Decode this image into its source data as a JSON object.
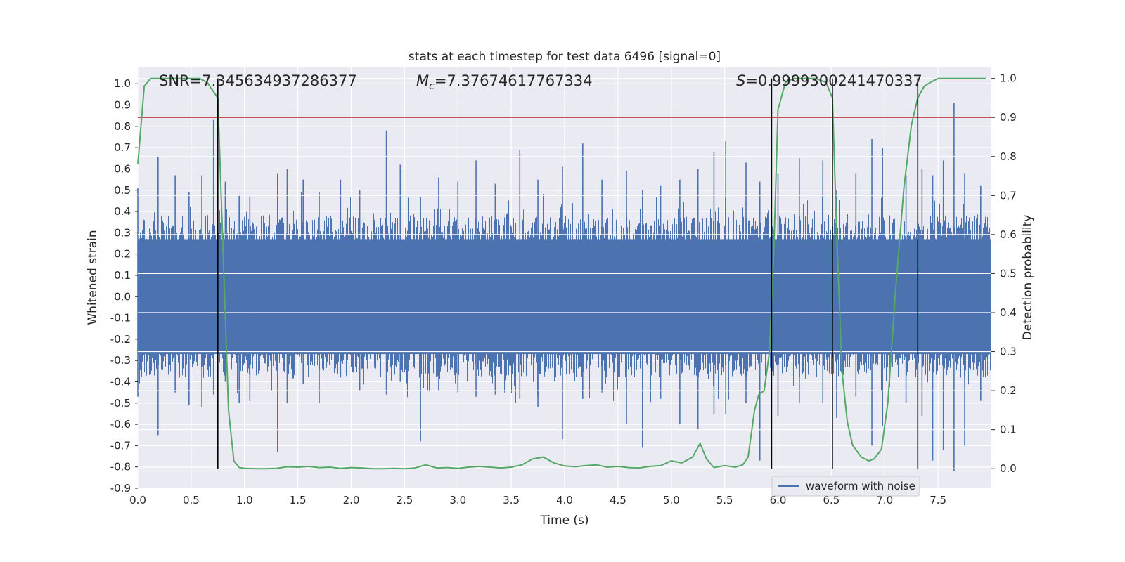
{
  "chart_data": {
    "type": "line",
    "title": "stats at each timestep for test data 6496 [signal=0]",
    "xlabel": "Time (s)",
    "ylabel_left": "Whitened strain",
    "ylabel_right": "Detection probability",
    "xlim": [
      0.0,
      8.0
    ],
    "ylim_left": [
      -0.9,
      1.08
    ],
    "ylim_right": [
      -0.05,
      1.03
    ],
    "x_ticks": [
      "0.0",
      "0.5",
      "1.0",
      "1.5",
      "2.0",
      "2.5",
      "3.0",
      "3.5",
      "4.0",
      "4.5",
      "5.0",
      "5.5",
      "6.0",
      "6.5",
      "7.0",
      "7.5"
    ],
    "y_left_ticks": [
      "1.0",
      "0.9",
      "0.8",
      "0.7",
      "0.6",
      "0.5",
      "0.4",
      "0.3",
      "0.2",
      "0.1",
      "0.0",
      "-0.1",
      "-0.2",
      "-0.3",
      "-0.4",
      "-0.5",
      "-0.6",
      "-0.7",
      "-0.8",
      "-0.9"
    ],
    "y_right_ticks": [
      "1.0",
      "0.9",
      "0.8",
      "0.7",
      "0.6",
      "0.5",
      "0.4",
      "0.3",
      "0.2",
      "0.1",
      "0.0"
    ],
    "grid": true,
    "annotations": {
      "snr": "SNR=7.345634937286377",
      "mc_symbol": "M",
      "mc_sub": "c",
      "mc_value": "=7.37674617767334",
      "s_symbol": "S",
      "s_value": "=0.9999300241470337"
    },
    "threshold": {
      "value": 0.9,
      "axis": "right",
      "color": "#c44e52"
    },
    "vertical_lines": [
      0.75,
      5.94,
      6.51,
      7.31
    ],
    "waveform": {
      "name": "waveform with noise",
      "color": "#4c72b0",
      "envelope": 0.27,
      "spikes": [
        [
          0.0,
          0.51,
          -0.47
        ],
        [
          0.19,
          0.66,
          -0.65
        ],
        [
          0.35,
          0.57,
          -0.45
        ],
        [
          0.48,
          0.49,
          -0.51
        ],
        [
          0.6,
          0.57,
          -0.52
        ],
        [
          0.71,
          0.83,
          -0.46
        ],
        [
          0.82,
          0.54,
          -0.4
        ],
        [
          0.95,
          0.48,
          -0.5
        ],
        [
          1.05,
          0.47,
          -0.49
        ],
        [
          1.31,
          0.58,
          -0.73
        ],
        [
          1.4,
          0.6,
          -0.5
        ],
        [
          1.55,
          0.55,
          -0.41
        ],
        [
          1.7,
          0.49,
          -0.5
        ],
        [
          1.9,
          0.55,
          -0.38
        ],
        [
          2.08,
          0.5,
          -0.44
        ],
        [
          2.33,
          0.78,
          -0.46
        ],
        [
          2.46,
          0.62,
          -0.4
        ],
        [
          2.65,
          0.47,
          -0.68
        ],
        [
          2.82,
          0.56,
          -0.44
        ],
        [
          3.0,
          0.54,
          -0.45
        ],
        [
          3.17,
          0.64,
          -0.47
        ],
        [
          3.35,
          0.53,
          -0.46
        ],
        [
          3.58,
          0.69,
          -0.48
        ],
        [
          3.75,
          0.55,
          -0.52
        ],
        [
          3.98,
          0.61,
          -0.67
        ],
        [
          4.17,
          0.72,
          -0.48
        ],
        [
          4.35,
          0.55,
          -0.45
        ],
        [
          4.58,
          0.59,
          -0.6
        ],
        [
          4.73,
          0.5,
          -0.71
        ],
        [
          4.9,
          0.52,
          -0.48
        ],
        [
          5.08,
          0.55,
          -0.6
        ],
        [
          5.25,
          0.6,
          -0.62
        ],
        [
          5.4,
          0.68,
          -0.55
        ],
        [
          5.51,
          0.73,
          -0.55
        ],
        [
          5.7,
          0.63,
          -0.5
        ],
        [
          5.83,
          0.54,
          -0.77
        ],
        [
          6.0,
          0.58,
          -0.56
        ],
        [
          6.2,
          0.65,
          -0.5
        ],
        [
          6.42,
          0.64,
          -0.5
        ],
        [
          6.55,
          0.5,
          -0.57
        ],
        [
          6.73,
          0.58,
          -0.47
        ],
        [
          6.88,
          0.74,
          -0.7
        ],
        [
          6.98,
          0.7,
          -0.61
        ],
        [
          7.2,
          0.57,
          -0.5
        ],
        [
          7.35,
          0.6,
          -0.56
        ],
        [
          7.45,
          0.57,
          -0.77
        ],
        [
          7.55,
          0.64,
          -0.72
        ],
        [
          7.65,
          0.91,
          -0.82
        ],
        [
          7.75,
          0.58,
          -0.7
        ],
        [
          7.9,
          0.52,
          -0.49
        ]
      ]
    },
    "probability": {
      "color": "#55a868",
      "x": [
        0.0,
        0.06,
        0.12,
        0.2,
        0.3,
        0.4,
        0.5,
        0.58,
        0.65,
        0.7,
        0.75,
        0.8,
        0.85,
        0.9,
        0.95,
        1.0,
        1.1,
        1.2,
        1.3,
        1.4,
        1.5,
        1.6,
        1.7,
        1.8,
        1.9,
        2.0,
        2.1,
        2.2,
        2.3,
        2.4,
        2.5,
        2.6,
        2.7,
        2.8,
        2.9,
        3.0,
        3.1,
        3.2,
        3.3,
        3.4,
        3.5,
        3.6,
        3.7,
        3.8,
        3.9,
        4.0,
        4.1,
        4.2,
        4.3,
        4.4,
        4.5,
        4.6,
        4.7,
        4.8,
        4.9,
        5.0,
        5.1,
        5.2,
        5.27,
        5.33,
        5.4,
        5.5,
        5.6,
        5.67,
        5.72,
        5.78,
        5.82,
        5.87,
        5.92,
        5.96,
        6.0,
        6.07,
        6.15,
        6.25,
        6.35,
        6.45,
        6.51,
        6.55,
        6.6,
        6.65,
        6.7,
        6.78,
        6.85,
        6.9,
        6.97,
        7.03,
        7.1,
        7.18,
        7.25,
        7.31,
        7.37,
        7.43,
        7.5,
        7.6,
        7.7,
        7.8,
        7.95
      ],
      "y": [
        0.78,
        0.98,
        1.0,
        1.0,
        1.0,
        1.0,
        1.0,
        1.0,
        0.99,
        0.97,
        0.95,
        0.55,
        0.15,
        0.02,
        0.003,
        0.001,
        0.0,
        0.0,
        0.001,
        0.005,
        0.004,
        0.006,
        0.003,
        0.004,
        0.001,
        0.003,
        0.002,
        0.0,
        0.0,
        0.001,
        0.0,
        0.002,
        0.01,
        0.002,
        0.003,
        0.001,
        0.004,
        0.006,
        0.004,
        0.002,
        0.004,
        0.01,
        0.025,
        0.03,
        0.015,
        0.007,
        0.005,
        0.008,
        0.01,
        0.004,
        0.006,
        0.003,
        0.002,
        0.006,
        0.008,
        0.02,
        0.015,
        0.03,
        0.065,
        0.025,
        0.003,
        0.008,
        0.004,
        0.01,
        0.03,
        0.15,
        0.19,
        0.2,
        0.3,
        0.55,
        0.92,
        0.99,
        1.0,
        1.0,
        1.0,
        0.99,
        0.95,
        0.6,
        0.25,
        0.12,
        0.06,
        0.03,
        0.02,
        0.025,
        0.05,
        0.17,
        0.45,
        0.72,
        0.88,
        0.95,
        0.98,
        0.99,
        1.0,
        1.0,
        1.0,
        1.0,
        1.0
      ]
    },
    "legend": {
      "label": "waveform with noise",
      "placement": "lower-right"
    }
  }
}
